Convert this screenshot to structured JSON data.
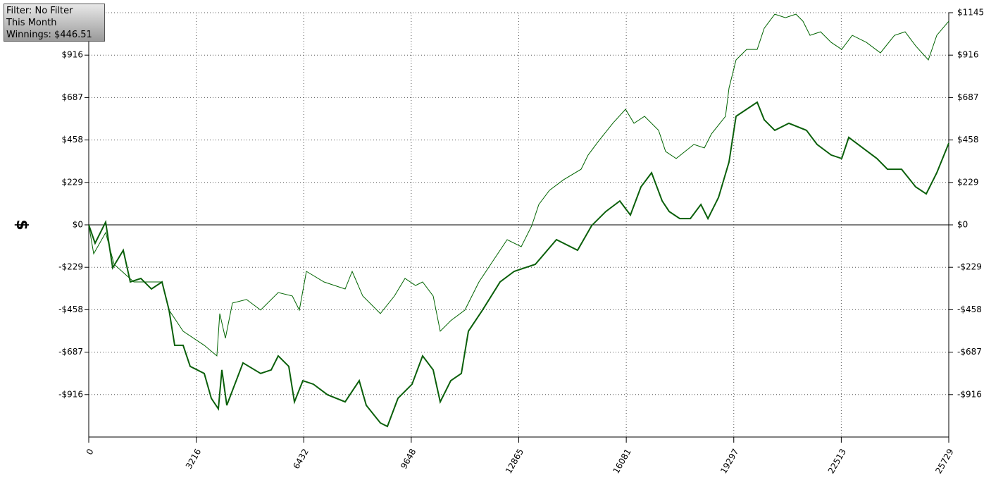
{
  "chart_data": {
    "type": "line",
    "annotations": [
      "Filter: No Filter",
      "This Month",
      "Winnings: $446.51"
    ],
    "y_label": "$",
    "xlim": [
      0,
      25729
    ],
    "xticks": [
      0,
      3216,
      6432,
      9648,
      12865,
      16081,
      19297,
      22513,
      25729
    ],
    "ylim": [
      -1145,
      1145
    ],
    "yticks": [
      {
        "value": -916,
        "label": "-$916"
      },
      {
        "value": -687,
        "label": "-$687"
      },
      {
        "value": -458,
        "label": "-$458"
      },
      {
        "value": -229,
        "label": "-$229"
      },
      {
        "value": 0,
        "label": "$0"
      },
      {
        "value": 229,
        "label": "$229"
      },
      {
        "value": 458,
        "label": "$458"
      },
      {
        "value": 687,
        "label": "$687"
      },
      {
        "value": 916,
        "label": "$916"
      },
      {
        "value": 1145,
        "label": "$1145"
      }
    ],
    "grid": true,
    "series": [
      {
        "color": "#006400",
        "width": 1,
        "x": [
          0,
          147,
          506,
          759,
          1348,
          2191,
          2402,
          2823,
          3455,
          3834,
          3919,
          4087,
          4298,
          4720,
          5141,
          5668,
          6089,
          6300,
          6511,
          7038,
          7670,
          7881,
          8197,
          8724,
          9146,
          9462,
          9778,
          9988,
          10304,
          10515,
          10831,
          11252,
          11674,
          12095,
          12517,
          12938,
          13254,
          13465,
          13781,
          14203,
          14730,
          14941,
          15257,
          15678,
          16058,
          16311,
          16627,
          17048,
          17259,
          17575,
          18102,
          18418,
          18629,
          19050,
          19155,
          19366,
          19682,
          19998,
          20209,
          20525,
          20841,
          21157,
          21368,
          21578,
          21894,
          22210,
          22526,
          22843,
          23264,
          23685,
          24107,
          24423,
          24739,
          25118,
          25371,
          25729
        ],
        "values": [
          0,
          -156,
          -42,
          -213,
          -308,
          -308,
          -460,
          -574,
          -650,
          -707,
          -479,
          -612,
          -422,
          -403,
          -460,
          -365,
          -384,
          -460,
          -251,
          -308,
          -346,
          -251,
          -384,
          -479,
          -384,
          -289,
          -327,
          -308,
          -384,
          -574,
          -517,
          -460,
          -308,
          -194,
          -80,
          -118,
          -4,
          110,
          186,
          243,
          300,
          377,
          453,
          548,
          624,
          548,
          586,
          510,
          396,
          358,
          434,
          415,
          491,
          586,
          738,
          890,
          947,
          947,
          1061,
          1137,
          1118,
          1137,
          1099,
          1023,
          1042,
          985,
          947,
          1023,
          985,
          928,
          1023,
          1042,
          966,
          890,
          1023,
          1099
        ]
      },
      {
        "color": "#0a5f0a",
        "width": 2,
        "x": [
          0,
          190,
          506,
          717,
          1032,
          1243,
          1559,
          1875,
          2191,
          2402,
          2571,
          2823,
          3034,
          3455,
          3666,
          3877,
          3982,
          4130,
          4614,
          5141,
          5457,
          5668,
          5984,
          6153,
          6405,
          6721,
          7143,
          7670,
          8091,
          8302,
          8724,
          8935,
          9251,
          9673,
          9988,
          10304,
          10515,
          10831,
          11147,
          11357,
          11779,
          12306,
          12727,
          13359,
          13992,
          14624,
          15046,
          15468,
          15889,
          16205,
          16521,
          16838,
          17154,
          17365,
          17681,
          17997,
          18313,
          18524,
          18840,
          19155,
          19366,
          19682,
          19998,
          20209,
          20525,
          20946,
          21473,
          21789,
          22210,
          22526,
          22736,
          23158,
          23580,
          23896,
          24317,
          24739,
          25055,
          25371,
          25729
        ],
        "values": [
          0,
          -99,
          15,
          -232,
          -137,
          -308,
          -289,
          -346,
          -308,
          -460,
          -650,
          -650,
          -764,
          -802,
          -936,
          -993,
          -783,
          -974,
          -745,
          -802,
          -783,
          -707,
          -764,
          -955,
          -841,
          -860,
          -917,
          -955,
          -841,
          -974,
          -1069,
          -1088,
          -936,
          -860,
          -707,
          -783,
          -955,
          -841,
          -802,
          -574,
          -460,
          -308,
          -251,
          -213,
          -80,
          -137,
          -4,
          72,
          129,
          53,
          205,
          281,
          129,
          72,
          34,
          34,
          110,
          34,
          148,
          339,
          586,
          624,
          662,
          567,
          510,
          548,
          510,
          434,
          377,
          358,
          472,
          415,
          358,
          300,
          300,
          205,
          167,
          281,
          440
        ]
      }
    ]
  }
}
